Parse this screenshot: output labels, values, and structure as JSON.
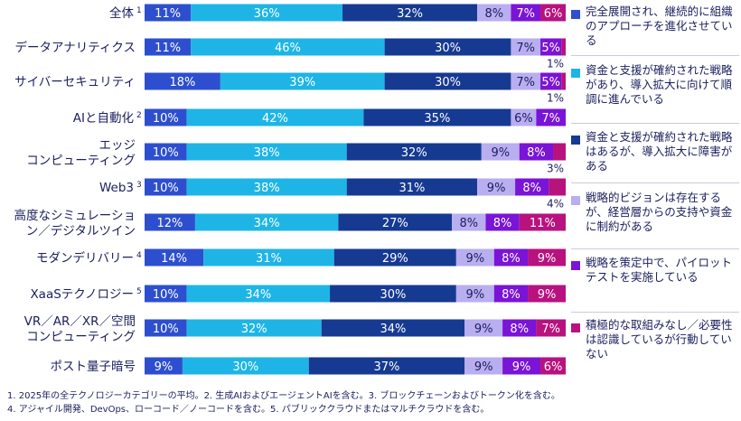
{
  "chart_data": {
    "type": "bar",
    "orientation": "horizontal",
    "stacked": true,
    "categories": [
      {
        "label_lines": [
          "全体"
        ],
        "sup": "1"
      },
      {
        "label_lines": [
          "データアナリティクス"
        ],
        "sup": ""
      },
      {
        "label_lines": [
          "サイバーセキュリティ"
        ],
        "sup": ""
      },
      {
        "label_lines": [
          "AIと自動化"
        ],
        "sup": "2"
      },
      {
        "label_lines": [
          "エッジ",
          "コンピューティング"
        ],
        "sup": ""
      },
      {
        "label_lines": [
          "Web3"
        ],
        "sup": "3"
      },
      {
        "label_lines": [
          "高度なシミュレーショ",
          "ン／デジタルツイン"
        ],
        "sup": ""
      },
      {
        "label_lines": [
          "モダンデリバリー"
        ],
        "sup": "4"
      },
      {
        "label_lines": [
          "XaaSテクノロジー"
        ],
        "sup": "5"
      },
      {
        "label_lines": [
          "VR／AR／XR／空間",
          "コンピューティング"
        ],
        "sup": ""
      },
      {
        "label_lines": [
          "ポスト量子暗号"
        ],
        "sup": ""
      }
    ],
    "series": [
      {
        "name": "完全展開され、継続的に組織のアプローチを進化させている",
        "color": "#2d4fcf",
        "values": [
          11,
          11,
          18,
          10,
          10,
          10,
          12,
          14,
          10,
          10,
          9
        ]
      },
      {
        "name": "資金と支援が確約された戦略があり、導入拡大に向けて順調に進んでいる",
        "color": "#1eb5e6",
        "values": [
          36,
          46,
          39,
          42,
          38,
          38,
          34,
          31,
          34,
          32,
          30
        ]
      },
      {
        "name": "資金と支援が確約された戦略はあるが、導入拡大に障害がある",
        "color": "#163a92",
        "values": [
          32,
          30,
          30,
          35,
          32,
          31,
          27,
          29,
          30,
          34,
          37
        ]
      },
      {
        "name": "戦略的ビジョンは存在するが、経営層からの支持や資金に制約がある",
        "color": "#b9aef0",
        "values": [
          8,
          7,
          7,
          6,
          9,
          9,
          8,
          9,
          9,
          9,
          9
        ]
      },
      {
        "name": "戦略を策定中で、パイロットテストを実施している",
        "color": "#7a14d6",
        "values": [
          7,
          5,
          5,
          7,
          8,
          8,
          8,
          8,
          8,
          8,
          9
        ]
      },
      {
        "name": "積極的な取組みなし／必要性は認識しているが行動していない",
        "color": "#b8127f",
        "values": [
          6,
          1,
          1,
          0,
          3,
          4,
          11,
          9,
          9,
          7,
          6
        ]
      }
    ],
    "value_labels": [
      [
        "11%",
        "36%",
        "32%",
        "8%",
        "7%",
        "6%"
      ],
      [
        "11%",
        "46%",
        "30%",
        "7%",
        "5%",
        "1%"
      ],
      [
        "18%",
        "39%",
        "30%",
        "7%",
        "5%",
        "1%"
      ],
      [
        "10%",
        "42%",
        "35%",
        "6%",
        "7%",
        ""
      ],
      [
        "10%",
        "38%",
        "32%",
        "9%",
        "8%",
        "3%"
      ],
      [
        "10%",
        "38%",
        "31%",
        "9%",
        "8%",
        "4%"
      ],
      [
        "12%",
        "34%",
        "27%",
        "8%",
        "8%",
        "11%"
      ],
      [
        "14%",
        "31%",
        "29%",
        "9%",
        "8%",
        "9%"
      ],
      [
        "10%",
        "34%",
        "30%",
        "9%",
        "8%",
        "9%"
      ],
      [
        "10%",
        "32%",
        "34%",
        "9%",
        "8%",
        "7%"
      ],
      [
        "9%",
        "30%",
        "37%",
        "9%",
        "9%",
        "6%"
      ]
    ],
    "outside_labels": [
      false,
      true,
      true,
      false,
      true,
      true,
      false,
      false,
      false,
      false,
      false
    ],
    "xlim": [
      0,
      100
    ],
    "grid": false,
    "legend_position": "right"
  },
  "legend": [
    {
      "text": "完全展開され、継続的に組織のアプローチを進化させている",
      "color": "#2d4fcf"
    },
    {
      "text": "資金と支援が確約された戦略があり、導入拡大に向けて順調に進んでいる",
      "color": "#1eb5e6"
    },
    {
      "text": "資金と支援が確約された戦略はあるが、導入拡大に障害がある",
      "color": "#163a92"
    },
    {
      "text": "戦略的ビジョンは存在するが、経営層からの支持や資金に制約がある",
      "color": "#b9aef0"
    },
    {
      "text": "戦略を策定中で、パイロットテストを実施している",
      "color": "#7a14d6"
    },
    {
      "text": "積極的な取組みなし／必要性は認識しているが行動していない",
      "color": "#b8127f"
    }
  ],
  "footnotes": {
    "line1": "1. 2025年の全テクノロジーカテゴリーの平均。2. 生成AIおよびエージェントAIを含む。3. ブロックチェーンおよびトークン化を含む。",
    "line2": "4. アジャイル開発、DevOps、ローコード／ノーコードを含む。5. パブリッククラウドまたはマルチクラウドを含む。"
  }
}
